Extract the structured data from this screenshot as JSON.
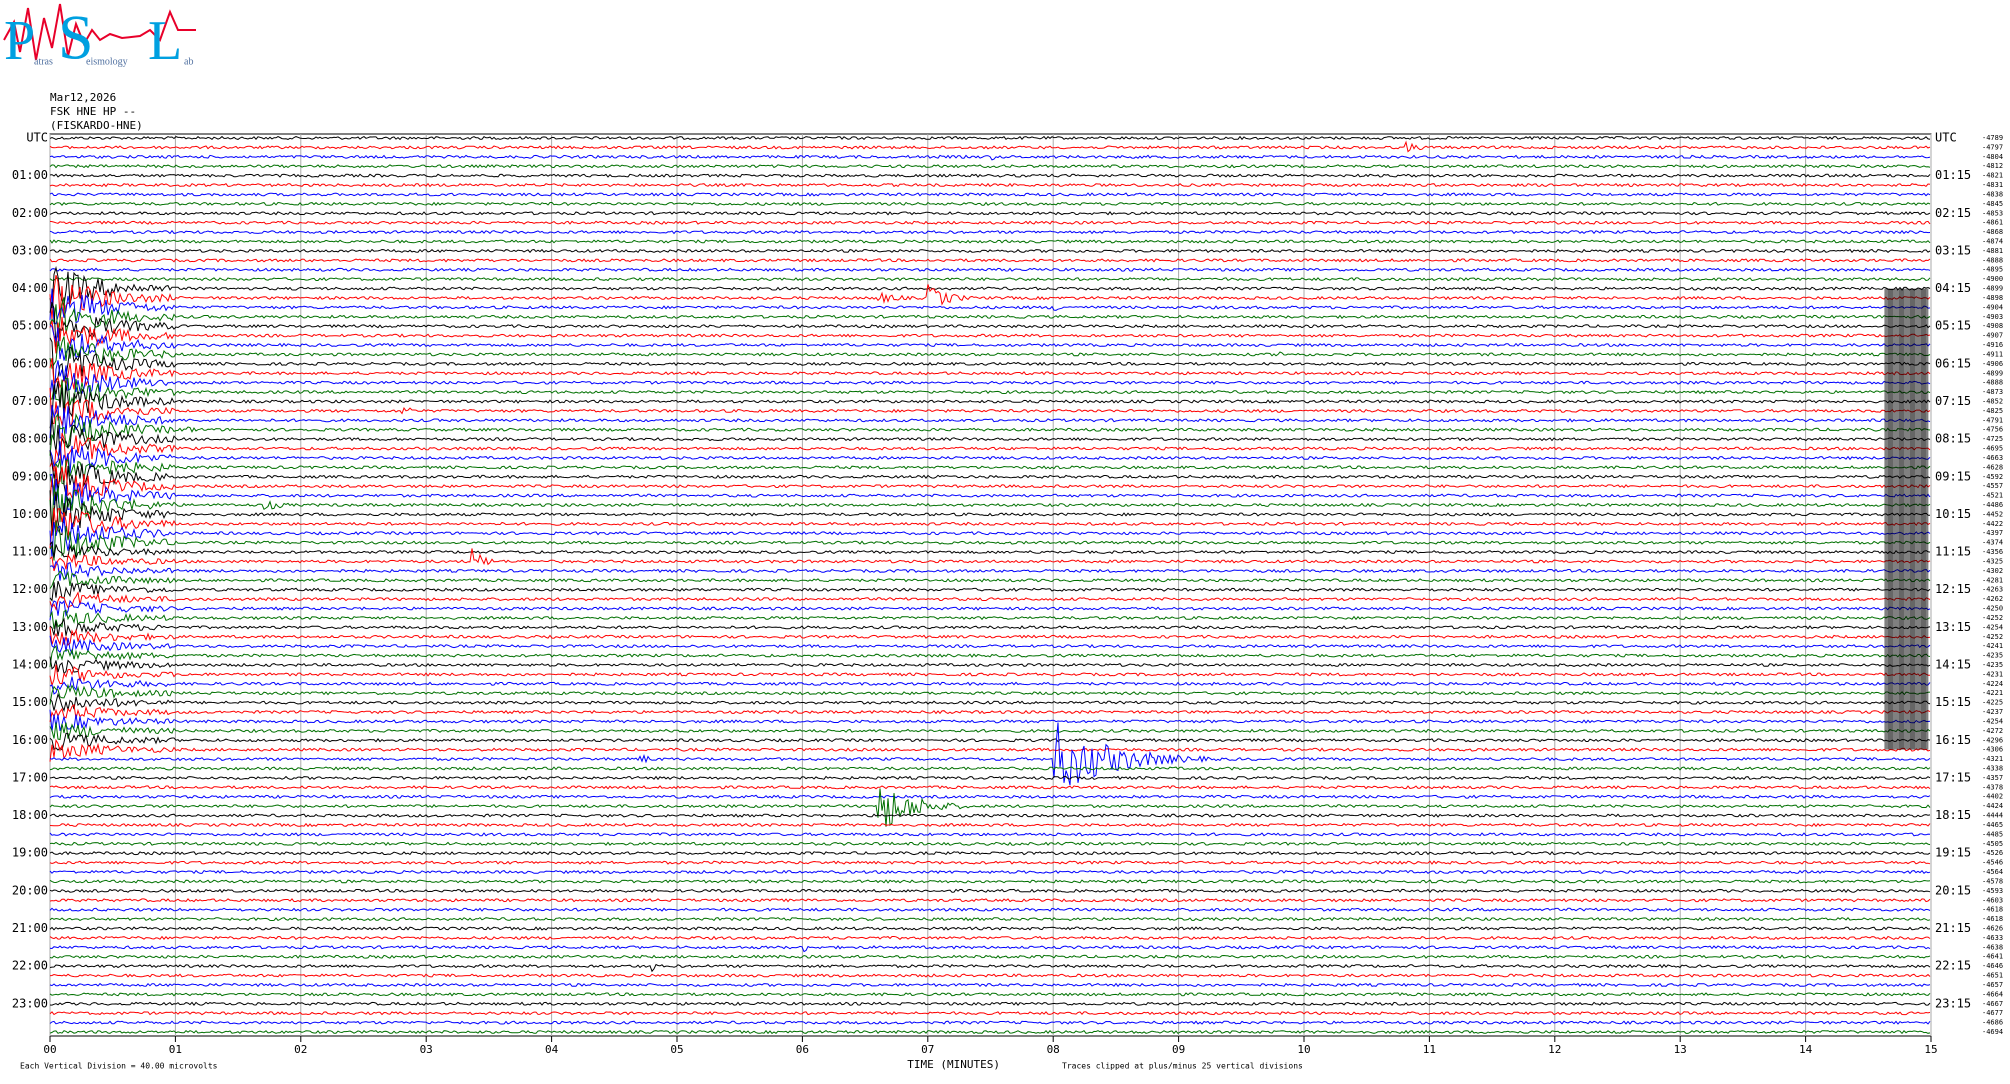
{
  "logo": {
    "letters": [
      "P",
      "S",
      "L"
    ],
    "words": [
      "atras",
      "eismology",
      "ab"
    ]
  },
  "header": {
    "date": "Mar12,2026",
    "station": "FSK HNE HP --",
    "site": "(FISKARDO-HNE)"
  },
  "chart_data": {
    "type": "helicorder",
    "left_labels": [
      "UTC",
      "01:00",
      "02:00",
      "03:00",
      "04:00",
      "05:00",
      "06:00",
      "07:00",
      "08:00",
      "09:00",
      "10:00",
      "11:00",
      "12:00",
      "13:00",
      "14:00",
      "15:00",
      "16:00",
      "17:00",
      "18:00",
      "19:00",
      "20:00",
      "21:00",
      "22:00",
      "23:00"
    ],
    "right_labels": [
      "UTC",
      "01:15",
      "02:15",
      "03:15",
      "04:15",
      "05:15",
      "06:15",
      "07:15",
      "08:15",
      "09:15",
      "10:15",
      "11:15",
      "12:15",
      "13:15",
      "14:15",
      "15:15",
      "16:15",
      "17:15",
      "18:15",
      "19:15",
      "20:15",
      "21:15",
      "22:15",
      "23:15"
    ],
    "trace_offsets": [
      -4789,
      -4797,
      -4804,
      -4812,
      -4821,
      -4831,
      -4838,
      -4845,
      -4853,
      -4861,
      -4868,
      -4874,
      -4881,
      -4888,
      -4895,
      -4900,
      -4899,
      -4898,
      -4904,
      -4903,
      -4908,
      -4907,
      -4916,
      -4911,
      -4906,
      -4899,
      -4888,
      -4873,
      -4852,
      -4825,
      -4791,
      -4756,
      -4725,
      -4695,
      -4663,
      -4628,
      -4592,
      -4557,
      -4521,
      -4486,
      -4452,
      -4422,
      -4397,
      -4374,
      -4356,
      -4325,
      -4302,
      -4281,
      -4263,
      -4262,
      -4250,
      -4252,
      -4254,
      -4252,
      -4241,
      -4235,
      -4235,
      -4231,
      -4224,
      -4221,
      -4225,
      -4237,
      -4254,
      -4272,
      -4296,
      -4306,
      -4321,
      -4338,
      -4357,
      -4378,
      -4402,
      -4424,
      -4444,
      -4465,
      -4485,
      -4505,
      -4526,
      -4546,
      -4564,
      -4578,
      -4593,
      -4603,
      -4618,
      -4618,
      -4626,
      -4633,
      -4638,
      -4641,
      -4646,
      -4651,
      -4657,
      -4664,
      -4667,
      -4677,
      -4686,
      -4694
    ],
    "colors": [
      "#000000",
      "#ff0000",
      "#0000ff",
      "#007000"
    ],
    "xlabel": "TIME (MINUTES)",
    "scale_note": "Each Vertical Division =  40.00 microvolts",
    "clip_note": "Traces clipped at plus/minus 25 vertical divisions",
    "xlim": [
      0,
      15
    ],
    "xticks": [
      {
        "value": 0,
        "label": "00"
      },
      {
        "value": 1,
        "label": "01"
      },
      {
        "value": 2,
        "label": "02"
      },
      {
        "value": 3,
        "label": "03"
      },
      {
        "value": 4,
        "label": "04"
      },
      {
        "value": 5,
        "label": "05"
      },
      {
        "value": 6,
        "label": "06"
      },
      {
        "value": 7,
        "label": "07"
      },
      {
        "value": 8,
        "label": "08"
      },
      {
        "value": 9,
        "label": "09"
      },
      {
        "value": 10,
        "label": "10"
      },
      {
        "value": 11,
        "label": "11"
      },
      {
        "value": 12,
        "label": "12"
      },
      {
        "value": 13,
        "label": "13"
      },
      {
        "value": 14,
        "label": "14"
      },
      {
        "value": 15,
        "label": "15"
      }
    ],
    "grid": true
  }
}
